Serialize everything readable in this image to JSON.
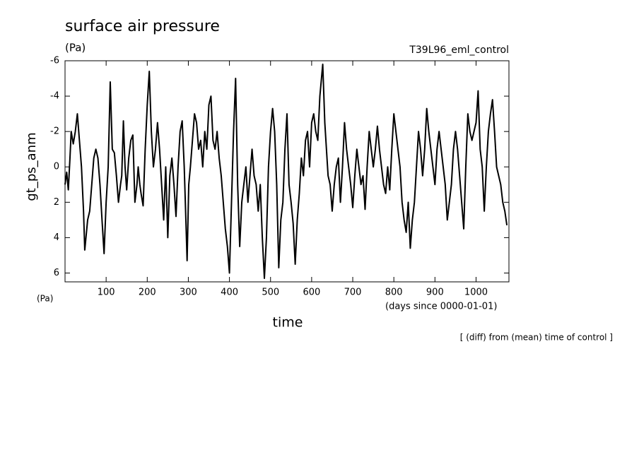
{
  "chart_data": {
    "type": "line",
    "title": "surface air pressure",
    "unit_top": "(Pa)",
    "subtitle_right": "T39L96_eml_control",
    "y_label": "gt_ps_anm",
    "unit_bottom": "(Pa)",
    "x_label": "time",
    "x_units": "(days since 0000-01-01)",
    "note": "[ (diff) from (mean) time of control ]",
    "color": "#000000",
    "xlim": [
      0,
      1080
    ],
    "ylim": [
      -6,
      6.5
    ],
    "y_reversed": true,
    "xticks": [
      100,
      200,
      300,
      400,
      500,
      600,
      700,
      800,
      900,
      1000
    ],
    "yticks": [
      -6,
      -4,
      -2,
      0,
      2,
      4,
      6
    ],
    "x": [
      0,
      4,
      8,
      12,
      15,
      20,
      25,
      30,
      35,
      40,
      45,
      48,
      55,
      60,
      65,
      70,
      75,
      80,
      85,
      90,
      95,
      100,
      105,
      110,
      115,
      120,
      125,
      130,
      135,
      138,
      142,
      146,
      150,
      155,
      160,
      165,
      170,
      175,
      178,
      182,
      185,
      190,
      195,
      200,
      205,
      210,
      215,
      220,
      225,
      230,
      235,
      240,
      245,
      250,
      255,
      260,
      265,
      270,
      275,
      280,
      285,
      290,
      294,
      297,
      301,
      305,
      310,
      315,
      320,
      325,
      330,
      335,
      340,
      345,
      350,
      355,
      360,
      365,
      370,
      375,
      380,
      385,
      390,
      395,
      400,
      405,
      410,
      415,
      420,
      425,
      430,
      435,
      440,
      445,
      450,
      455,
      460,
      465,
      470,
      475,
      480,
      485,
      490,
      495,
      500,
      505,
      510,
      515,
      520,
      525,
      530,
      535,
      540,
      545,
      550,
      555,
      560,
      565,
      570,
      575,
      580,
      585,
      590,
      595,
      600,
      605,
      610,
      615,
      620,
      627,
      632,
      636,
      640,
      645,
      650,
      655,
      660,
      665,
      670,
      675,
      680,
      685,
      690,
      695,
      700,
      705,
      710,
      715,
      720,
      725,
      730,
      735,
      740,
      745,
      750,
      755,
      760,
      765,
      770,
      775,
      780,
      785,
      790,
      795,
      800,
      805,
      810,
      815,
      820,
      825,
      830,
      835,
      840,
      845,
      850,
      855,
      860,
      865,
      870,
      875,
      880,
      885,
      890,
      895,
      900,
      905,
      910,
      915,
      920,
      925,
      930,
      935,
      940,
      945,
      950,
      955,
      960,
      965,
      970,
      975,
      980,
      985,
      990,
      995,
      1000,
      1005,
      1010,
      1015,
      1020,
      1025,
      1030,
      1035,
      1040,
      1045,
      1050,
      1055,
      1060,
      1065,
      1070,
      1075
    ],
    "values": [
      1,
      0.3,
      1.3,
      -0.5,
      -2,
      -1.3,
      -2,
      -3,
      -1.5,
      0,
      2.5,
      4.7,
      3,
      2.5,
      1,
      -0.5,
      -1,
      -0.5,
      1,
      3,
      4.9,
      2,
      0,
      -4.8,
      -1,
      -0.8,
      0.5,
      2,
      1,
      0.5,
      -2.6,
      0,
      1.3,
      -0.5,
      -1.5,
      -1.8,
      2,
      1,
      0,
      1,
      1.5,
      2.2,
      -1,
      -3.5,
      -5.4,
      -2,
      0,
      -1,
      -2.5,
      -1,
      1,
      3,
      0,
      4,
      0.5,
      -0.5,
      1,
      2.8,
      0,
      -2,
      -2.6,
      0,
      3,
      5.3,
      1,
      0,
      -1.5,
      -3,
      -2.5,
      -1,
      -1.5,
      0,
      -2,
      -1,
      -3.5,
      -4,
      -1.5,
      -1,
      -2,
      -0.5,
      0.5,
      2,
      3.5,
      4.5,
      6,
      2,
      -2,
      -5,
      1,
      4.5,
      2,
      1,
      0,
      2,
      0.5,
      -1,
      0.5,
      1,
      2.5,
      1,
      4,
      6.3,
      4,
      0,
      -2,
      -3.3,
      -2,
      1,
      5.7,
      3,
      2,
      -1,
      -3,
      1,
      2,
      3.2,
      5.5,
      3,
      1.5,
      -0.5,
      0.5,
      -1.5,
      -2,
      0,
      -2.5,
      -3,
      -2,
      -1.5,
      -4,
      -5.8,
      -2.5,
      -1,
      0.5,
      1,
      2.5,
      1,
      0,
      -0.5,
      2,
      0,
      -2.5,
      -1,
      0,
      1,
      2.3,
      0.5,
      -1,
      0,
      1,
      0.5,
      2.4,
      0,
      -2,
      -1,
      0,
      -1,
      -2.3,
      -1,
      0,
      1,
      1.5,
      0,
      1.3,
      -1,
      -3,
      -2,
      -1,
      0,
      2,
      3,
      3.7,
      2,
      4.6,
      3,
      2,
      0,
      -2,
      -1,
      0.5,
      -1,
      -3.3,
      -2,
      -1,
      0,
      1,
      -1,
      -2,
      -1,
      0,
      1,
      3,
      2,
      1,
      -1,
      -2,
      -1,
      0.5,
      2,
      3.5,
      0,
      -3,
      -2,
      -1.5,
      -2,
      -2.5,
      -4.3,
      -1,
      0,
      2.5,
      0,
      -2,
      -3,
      -3.8,
      -2,
      0,
      0.5,
      1,
      2,
      2.5,
      3.3
    ]
  }
}
